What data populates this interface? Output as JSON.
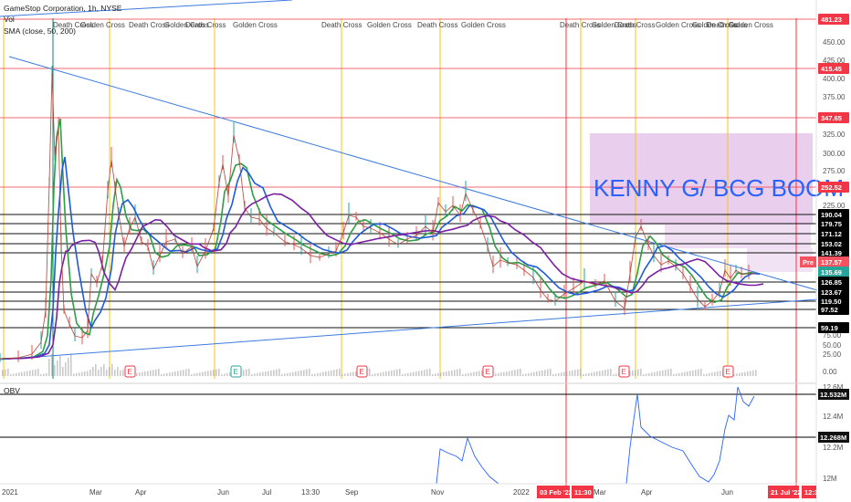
{
  "chart_data": {
    "type": "line",
    "title": "GameStop Corporation, 1h, NYSE",
    "indicators": [
      "Vol",
      "SMA (close, 50, 200)"
    ],
    "annotation": "KENNY G/ BCG BOOM",
    "cross_labels": [
      "Death Cross",
      "Golden Cross",
      "Death Cross",
      "Golden Cross",
      "Death Cross",
      "Golden Cross",
      "Death Cross",
      "Golden Cross",
      "Death Cross",
      "Golden Cross",
      "Death Cross",
      "Golden Cross",
      "Death Cross",
      "Golden Cross",
      "Golden Cross",
      "Death Cross",
      "Golden Cross"
    ],
    "price_levels": [
      {
        "label": "481.23",
        "color": "#f23645"
      },
      {
        "label": "415.45",
        "color": "#f23645"
      },
      {
        "label": "347.65",
        "color": "#f23645"
      },
      {
        "label": "252.52",
        "color": "#f23645"
      },
      {
        "label": "190.04",
        "color": "#000000"
      },
      {
        "label": "179.75",
        "color": "#000000"
      },
      {
        "label": "171.12",
        "color": "#000000"
      },
      {
        "label": "153.02",
        "color": "#000000"
      },
      {
        "label": "141.39",
        "color": "#000000"
      },
      {
        "label": "137.57",
        "color": "#f7525f"
      },
      {
        "label": "135.69",
        "color": "#26a69a"
      },
      {
        "label": "126.85",
        "color": "#000000"
      },
      {
        "label": "123.67",
        "color": "#000000"
      },
      {
        "label": "119.50",
        "color": "#000000"
      },
      {
        "label": "97.52",
        "color": "#000000"
      },
      {
        "label": "59.19",
        "color": "#000000"
      }
    ],
    "pre_label": "Pre",
    "y_ticks": [
      "450.00",
      "425.00",
      "400.00",
      "375.00",
      "350.00",
      "325.00",
      "300.00",
      "275.00",
      "250.00",
      "225.00",
      "75.00",
      "50.00",
      "25.00",
      "0.00"
    ],
    "x_ticks": [
      "2021",
      "Mar",
      "Apr",
      "Jun",
      "Jul",
      "13:30",
      "Sep",
      "Nov",
      "2022",
      "Mar",
      "Apr",
      "Jun"
    ],
    "x_highlight_labels": [
      "03 Feb '22",
      "11:30",
      "21 Jul '22",
      "12:3"
    ],
    "earnings_marker": "E",
    "obv": {
      "label": "OBV",
      "levels": [
        "12.532M",
        "12.268M"
      ],
      "ticks": [
        "12.6M",
        "12.4M",
        "12.2M",
        "12M"
      ]
    },
    "colors": {
      "sma_green": "#2e9e44",
      "sma_blue": "#1e5bd8",
      "sma_purple": "#7b1fa2",
      "trendline": "#3d7be0",
      "resistance_red": "#f23645",
      "annotation_box": "#e1bee7",
      "annotation_text": "#2962ff"
    }
  }
}
